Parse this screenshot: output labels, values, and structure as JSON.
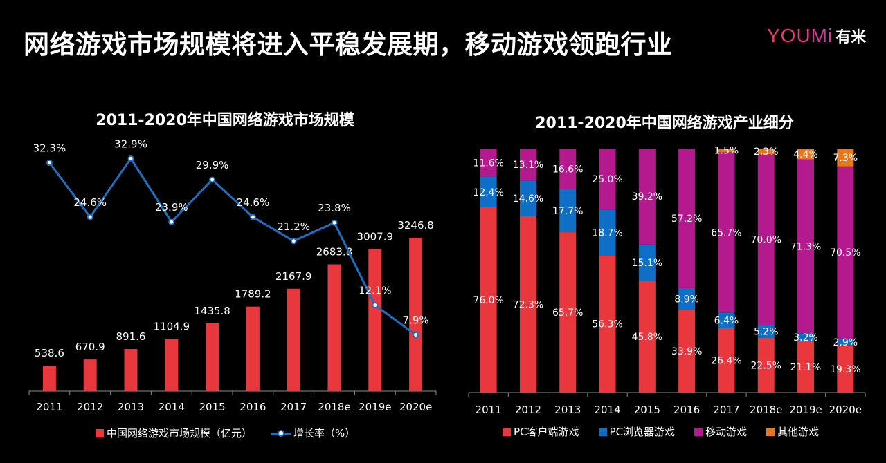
{
  "page": {
    "title": "网络游戏市场规模将进入平稳发展期，移动游戏领跑行业",
    "logo": {
      "wordmark": "YOUMi",
      "chinese": "有米"
    }
  },
  "chart_data": [
    {
      "type": "bar+line",
      "title": "2011-2020年中国网络游戏市场规模",
      "categories": [
        "2011",
        "2012",
        "2013",
        "2014",
        "2015",
        "2016",
        "2017",
        "2018e",
        "2019e",
        "2020e"
      ],
      "series": [
        {
          "name": "中国网络游戏市场规模（亿元）",
          "type": "bar",
          "color": "#e8383d",
          "values": [
            538.6,
            670.9,
            891.6,
            1104.9,
            1435.8,
            1789.2,
            2167.9,
            2683.8,
            3007.9,
            3246.8
          ],
          "labels": [
            "538.6",
            "670.9",
            "891.6",
            "1104.9",
            "1435.8",
            "1789.2",
            "2167.9",
            "2683.8",
            "3007.9",
            "3246.8"
          ]
        },
        {
          "name": "增长率（%）",
          "type": "line",
          "color": "#1e6fc1",
          "values": [
            32.3,
            24.6,
            32.9,
            23.9,
            29.9,
            24.6,
            21.2,
            23.8,
            12.1,
            7.9
          ],
          "labels": [
            "32.3%",
            "24.6%",
            "32.9%",
            "23.9%",
            "29.9%",
            "24.6%",
            "21.2%",
            "23.8%",
            "12.1%",
            "7.9%"
          ]
        }
      ],
      "bar_ylim": [
        0,
        3400
      ],
      "line_ylim": [
        0,
        34
      ]
    },
    {
      "type": "stacked-bar-100",
      "title": "2011-2020年中国网络游戏产业细分",
      "categories": [
        "2011",
        "2012",
        "2013",
        "2014",
        "2015",
        "2016",
        "2017",
        "2018e",
        "2019e",
        "2020e"
      ],
      "series": [
        {
          "name": "PC客户端游戏",
          "color": "#e8383d",
          "values": [
            76.0,
            72.3,
            65.7,
            56.3,
            45.8,
            33.9,
            26.4,
            22.5,
            21.1,
            19.3
          ],
          "labels": [
            "76.0%",
            "72.3%",
            "65.7%",
            "56.3%",
            "45.8%",
            "33.9%",
            "26.4%",
            "22.5%",
            "21.1%",
            "19.3%"
          ]
        },
        {
          "name": "PC浏览器游戏",
          "color": "#0f6fc6",
          "values": [
            12.4,
            14.6,
            17.7,
            18.7,
            15.1,
            8.9,
            6.4,
            5.2,
            3.2,
            2.9
          ],
          "labels": [
            "12.4%",
            "14.6%",
            "17.7%",
            "18.7%",
            "15.1%",
            "8.9%",
            "6.4%",
            "5.2%",
            "3.2%",
            "2.9%"
          ]
        },
        {
          "name": "移动游戏",
          "color": "#b5198e",
          "values": [
            11.6,
            13.1,
            16.6,
            25.0,
            39.2,
            57.2,
            65.7,
            70.0,
            71.3,
            70.5
          ],
          "labels": [
            "11.6%",
            "13.1%",
            "16.6%",
            "25.0%",
            "39.2%",
            "57.2%",
            "65.7%",
            "70.0%",
            "71.3%",
            "70.5%"
          ]
        },
        {
          "name": "其他游戏",
          "color": "#e87722",
          "values": [
            0,
            0,
            0,
            0,
            0,
            0,
            1.5,
            2.3,
            4.4,
            7.3
          ],
          "labels": [
            "",
            "",
            "",
            "",
            "",
            "",
            "1.5%",
            "2.3%",
            "4.4%",
            "7.3%"
          ]
        }
      ],
      "ylim": [
        0,
        100
      ]
    }
  ]
}
